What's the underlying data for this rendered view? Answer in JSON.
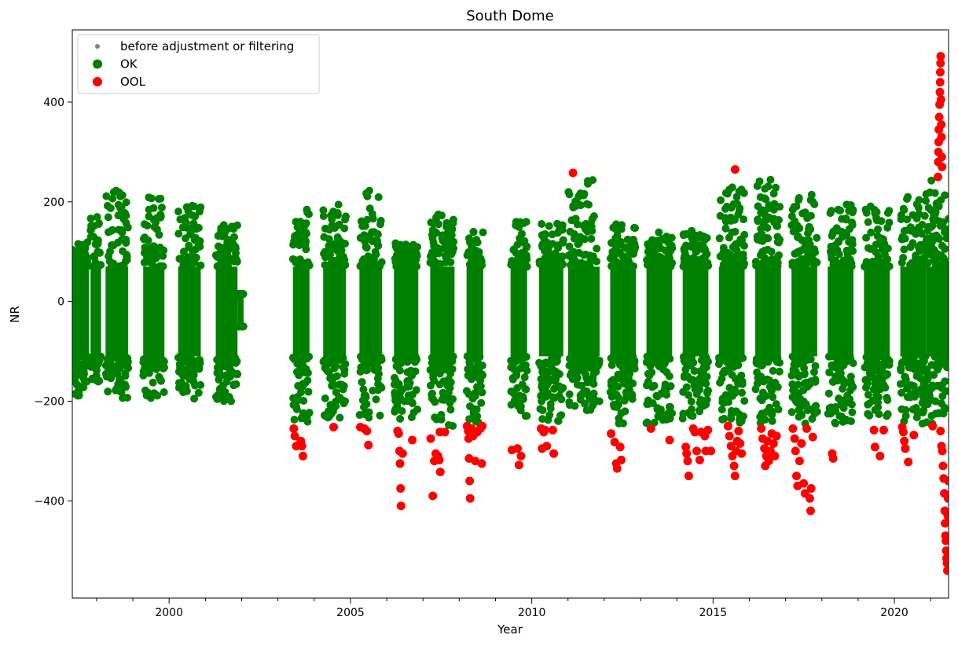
{
  "chart_data": {
    "type": "scatter",
    "title": "South Dome",
    "xlabel": "Year",
    "ylabel": "NR",
    "xlim": [
      "1997-05-01",
      "2021-06-30"
    ],
    "ylim": [
      -595,
      545
    ],
    "x_ticks": [
      {
        "value": "2000-01-01",
        "label": "2000"
      },
      {
        "value": "2005-01-01",
        "label": "2005"
      },
      {
        "value": "2010-01-01",
        "label": "2010"
      },
      {
        "value": "2015-01-01",
        "label": "2015"
      },
      {
        "value": "2020-01-01",
        "label": "2020"
      }
    ],
    "y_ticks": [
      {
        "value": -400,
        "label": "−400"
      },
      {
        "value": -200,
        "label": "−200"
      },
      {
        "value": 0,
        "label": "0"
      },
      {
        "value": 200,
        "label": "200"
      },
      {
        "value": 400,
        "label": "400"
      }
    ],
    "grid": false,
    "legend": {
      "position": "top-left",
      "entries": [
        {
          "label": "before adjustment or filtering",
          "color": "#808080",
          "marker": "small-dot"
        },
        {
          "label": "OK",
          "color": "#008000",
          "marker": "dot"
        },
        {
          "label": "OOL",
          "color": "#ff0000",
          "marker": "dot"
        }
      ]
    },
    "ok_range_note": "OK band roughly -250 to 250",
    "series": [
      {
        "name": "OK",
        "color": "#008000",
        "bands": [
          {
            "start": "1997-05-01",
            "end": "1997-10-15",
            "min": -195,
            "max": 120
          },
          {
            "start": "1997-11-01",
            "end": "1998-02-15",
            "min": -165,
            "max": 180
          },
          {
            "start": "1998-04-01",
            "end": "1998-11-15",
            "min": -195,
            "max": 225
          },
          {
            "start": "1999-04-15",
            "end": "1999-11-15",
            "min": -195,
            "max": 210
          },
          {
            "start": "2000-04-01",
            "end": "2000-11-15",
            "min": -195,
            "max": 195
          },
          {
            "start": "2001-04-15",
            "end": "2001-11-20",
            "min": -200,
            "max": 155
          },
          {
            "start": "2001-11-20",
            "end": "2002-01-20",
            "min": -50,
            "max": 15
          },
          {
            "start": "2003-06-01",
            "end": "2003-11-15",
            "min": -245,
            "max": 195
          },
          {
            "start": "2004-04-01",
            "end": "2004-11-15",
            "min": -245,
            "max": 195
          },
          {
            "start": "2005-04-01",
            "end": "2005-11-15",
            "min": -240,
            "max": 225
          },
          {
            "start": "2006-03-15",
            "end": "2006-11-15",
            "min": -240,
            "max": 120
          },
          {
            "start": "2007-03-15",
            "end": "2007-11-15",
            "min": -250,
            "max": 175
          },
          {
            "start": "2008-03-15",
            "end": "2008-08-30",
            "min": -250,
            "max": 145
          },
          {
            "start": "2009-06-01",
            "end": "2009-11-15",
            "min": -245,
            "max": 165
          },
          {
            "start": "2010-03-15",
            "end": "2010-11-15",
            "min": -245,
            "max": 160
          },
          {
            "start": "2011-01-01",
            "end": "2011-11-15",
            "min": -220,
            "max": 245
          },
          {
            "start": "2012-03-01",
            "end": "2012-11-15",
            "min": -245,
            "max": 155
          },
          {
            "start": "2013-03-01",
            "end": "2013-11-15",
            "min": -245,
            "max": 140
          },
          {
            "start": "2014-03-01",
            "end": "2014-11-15",
            "min": -245,
            "max": 145
          },
          {
            "start": "2015-03-01",
            "end": "2015-11-15",
            "min": -245,
            "max": 230
          },
          {
            "start": "2016-03-01",
            "end": "2016-11-15",
            "min": -245,
            "max": 245
          },
          {
            "start": "2017-03-01",
            "end": "2017-11-15",
            "min": -245,
            "max": 220
          },
          {
            "start": "2018-03-01",
            "end": "2018-11-15",
            "min": -245,
            "max": 195
          },
          {
            "start": "2019-03-01",
            "end": "2019-11-15",
            "min": -230,
            "max": 195
          },
          {
            "start": "2020-03-01",
            "end": "2020-11-15",
            "min": -245,
            "max": 210
          },
          {
            "start": "2020-11-15",
            "end": "2021-06-30",
            "min": -245,
            "max": 245
          }
        ]
      },
      {
        "name": "OOL",
        "color": "#ff0000",
        "points": [
          {
            "x": "2003-06-10",
            "y": -255
          },
          {
            "x": "2003-06-20",
            "y": -270
          },
          {
            "x": "2003-07-05",
            "y": -290
          },
          {
            "x": "2003-08-20",
            "y": -280
          },
          {
            "x": "2003-09-01",
            "y": -290
          },
          {
            "x": "2003-09-10",
            "y": -310
          },
          {
            "x": "2004-07-15",
            "y": -252
          },
          {
            "x": "2005-04-10",
            "y": -252
          },
          {
            "x": "2005-05-20",
            "y": -255
          },
          {
            "x": "2005-06-15",
            "y": -260
          },
          {
            "x": "2005-07-01",
            "y": -288
          },
          {
            "x": "2006-04-20",
            "y": -260
          },
          {
            "x": "2006-05-01",
            "y": -265
          },
          {
            "x": "2006-05-10",
            "y": -300
          },
          {
            "x": "2006-05-15",
            "y": -325
          },
          {
            "x": "2006-05-20",
            "y": -375
          },
          {
            "x": "2006-05-25",
            "y": -410
          },
          {
            "x": "2006-06-10",
            "y": -305
          },
          {
            "x": "2006-09-15",
            "y": -278
          },
          {
            "x": "2007-03-20",
            "y": -275
          },
          {
            "x": "2007-04-10",
            "y": -390
          },
          {
            "x": "2007-04-25",
            "y": -320
          },
          {
            "x": "2007-05-10",
            "y": -305
          },
          {
            "x": "2007-06-01",
            "y": -310
          },
          {
            "x": "2007-06-15",
            "y": -318
          },
          {
            "x": "2007-06-20",
            "y": -262
          },
          {
            "x": "2007-06-25",
            "y": -342
          },
          {
            "x": "2007-08-10",
            "y": -262
          },
          {
            "x": "2008-03-20",
            "y": -250
          },
          {
            "x": "2008-04-01",
            "y": -260
          },
          {
            "x": "2008-04-05",
            "y": -275
          },
          {
            "x": "2008-04-10",
            "y": -315
          },
          {
            "x": "2008-04-15",
            "y": -360
          },
          {
            "x": "2008-04-20",
            "y": -395
          },
          {
            "x": "2008-05-05",
            "y": -255
          },
          {
            "x": "2008-05-20",
            "y": -270
          },
          {
            "x": "2008-06-10",
            "y": -320
          },
          {
            "x": "2008-07-01",
            "y": -262
          },
          {
            "x": "2008-08-01",
            "y": -255
          },
          {
            "x": "2008-08-15",
            "y": -325
          },
          {
            "x": "2008-08-20",
            "y": -250
          },
          {
            "x": "2009-06-15",
            "y": -298
          },
          {
            "x": "2009-08-10",
            "y": -295
          },
          {
            "x": "2009-08-25",
            "y": -328
          },
          {
            "x": "2009-09-15",
            "y": -310
          },
          {
            "x": "2010-04-05",
            "y": -255
          },
          {
            "x": "2010-04-15",
            "y": -295
          },
          {
            "x": "2010-05-01",
            "y": -262
          },
          {
            "x": "2010-05-15",
            "y": -258
          },
          {
            "x": "2010-06-01",
            "y": -290
          },
          {
            "x": "2010-08-01",
            "y": -258
          },
          {
            "x": "2010-08-10",
            "y": -305
          },
          {
            "x": "2011-02-20",
            "y": 258
          },
          {
            "x": "2012-03-10",
            "y": -265
          },
          {
            "x": "2012-04-15",
            "y": -282
          },
          {
            "x": "2012-05-01",
            "y": -325
          },
          {
            "x": "2012-05-10",
            "y": -335
          },
          {
            "x": "2012-06-10",
            "y": -292
          },
          {
            "x": "2012-06-20",
            "y": -318
          },
          {
            "x": "2013-04-15",
            "y": -255
          },
          {
            "x": "2013-10-20",
            "y": -278
          },
          {
            "x": "2014-04-01",
            "y": -292
          },
          {
            "x": "2014-04-10",
            "y": -305
          },
          {
            "x": "2014-04-20",
            "y": -320
          },
          {
            "x": "2014-05-01",
            "y": -350
          },
          {
            "x": "2014-06-15",
            "y": -255
          },
          {
            "x": "2014-07-01",
            "y": -262
          },
          {
            "x": "2014-07-20",
            "y": -300
          },
          {
            "x": "2014-08-20",
            "y": -318
          },
          {
            "x": "2014-09-01",
            "y": -262
          },
          {
            "x": "2014-10-10",
            "y": -270
          },
          {
            "x": "2014-10-20",
            "y": -300
          },
          {
            "x": "2014-11-10",
            "y": -258
          },
          {
            "x": "2014-12-10",
            "y": -300
          },
          {
            "x": "2015-06-01",
            "y": -250
          },
          {
            "x": "2015-06-15",
            "y": -270
          },
          {
            "x": "2015-07-01",
            "y": -290
          },
          {
            "x": "2015-07-15",
            "y": -310
          },
          {
            "x": "2015-08-01",
            "y": -330
          },
          {
            "x": "2015-08-10",
            "y": -350
          },
          {
            "x": "2015-08-10",
            "y": 265
          },
          {
            "x": "2015-08-20",
            "y": -300
          },
          {
            "x": "2015-09-01",
            "y": -280
          },
          {
            "x": "2015-09-15",
            "y": -260
          },
          {
            "x": "2015-10-01",
            "y": -285
          },
          {
            "x": "2015-10-15",
            "y": -305
          },
          {
            "x": "2016-05-01",
            "y": -255
          },
          {
            "x": "2016-05-15",
            "y": -275
          },
          {
            "x": "2016-06-01",
            "y": -295
          },
          {
            "x": "2016-06-10",
            "y": -330
          },
          {
            "x": "2016-06-20",
            "y": -310
          },
          {
            "x": "2016-07-01",
            "y": -280
          },
          {
            "x": "2016-07-15",
            "y": -320
          },
          {
            "x": "2016-08-01",
            "y": -300
          },
          {
            "x": "2016-08-15",
            "y": -265
          },
          {
            "x": "2016-09-01",
            "y": -285
          },
          {
            "x": "2016-09-15",
            "y": -310
          },
          {
            "x": "2016-10-01",
            "y": -270
          },
          {
            "x": "2017-03-15",
            "y": -255
          },
          {
            "x": "2017-04-01",
            "y": -275
          },
          {
            "x": "2017-04-10",
            "y": -300
          },
          {
            "x": "2017-04-20",
            "y": -350
          },
          {
            "x": "2017-05-01",
            "y": -370
          },
          {
            "x": "2017-05-20",
            "y": -320
          },
          {
            "x": "2017-06-10",
            "y": -285
          },
          {
            "x": "2017-07-01",
            "y": -365
          },
          {
            "x": "2017-07-15",
            "y": -385
          },
          {
            "x": "2017-08-01",
            "y": -255
          },
          {
            "x": "2017-09-01",
            "y": -395
          },
          {
            "x": "2017-09-10",
            "y": -420
          },
          {
            "x": "2017-09-15",
            "y": -375
          },
          {
            "x": "2017-10-01",
            "y": -272
          },
          {
            "x": "2018-04-15",
            "y": -305
          },
          {
            "x": "2018-04-25",
            "y": -315
          },
          {
            "x": "2019-06-10",
            "y": -258
          },
          {
            "x": "2019-06-20",
            "y": -292
          },
          {
            "x": "2019-08-10",
            "y": -310
          },
          {
            "x": "2019-09-15",
            "y": -258
          },
          {
            "x": "2020-03-20",
            "y": -252
          },
          {
            "x": "2020-04-01",
            "y": -262
          },
          {
            "x": "2020-04-10",
            "y": -280
          },
          {
            "x": "2020-04-20",
            "y": -295
          },
          {
            "x": "2020-05-20",
            "y": -322
          },
          {
            "x": "2020-07-15",
            "y": -268
          },
          {
            "x": "2021-01-20",
            "y": -250
          },
          {
            "x": "2021-03-15",
            "y": 250
          },
          {
            "x": "2021-03-18",
            "y": 280
          },
          {
            "x": "2021-03-20",
            "y": 300
          },
          {
            "x": "2021-03-22",
            "y": 320
          },
          {
            "x": "2021-03-25",
            "y": 345
          },
          {
            "x": "2021-03-28",
            "y": 370
          },
          {
            "x": "2021-04-01",
            "y": 395
          },
          {
            "x": "2021-04-04",
            "y": 420
          },
          {
            "x": "2021-04-06",
            "y": 440
          },
          {
            "x": "2021-04-08",
            "y": 460
          },
          {
            "x": "2021-04-10",
            "y": 478
          },
          {
            "x": "2021-04-12",
            "y": 492
          },
          {
            "x": "2021-04-15",
            "y": 405
          },
          {
            "x": "2021-04-18",
            "y": 355
          },
          {
            "x": "2021-04-20",
            "y": 330
          },
          {
            "x": "2021-04-22",
            "y": 290
          },
          {
            "x": "2021-04-25",
            "y": 270
          },
          {
            "x": "2021-04-10",
            "y": -260
          },
          {
            "x": "2021-04-20",
            "y": -290
          },
          {
            "x": "2021-04-28",
            "y": -300
          },
          {
            "x": "2021-05-05",
            "y": -330
          },
          {
            "x": "2021-05-12",
            "y": -355
          },
          {
            "x": "2021-05-18",
            "y": -385
          },
          {
            "x": "2021-05-22",
            "y": -420
          },
          {
            "x": "2021-05-26",
            "y": -445
          },
          {
            "x": "2021-05-30",
            "y": -470
          },
          {
            "x": "2021-06-03",
            "y": -480
          },
          {
            "x": "2021-06-06",
            "y": -500
          },
          {
            "x": "2021-06-10",
            "y": -515
          },
          {
            "x": "2021-06-14",
            "y": -525
          },
          {
            "x": "2021-06-18",
            "y": -540
          },
          {
            "x": "2021-06-22",
            "y": -430
          },
          {
            "x": "2021-06-25",
            "y": -395
          },
          {
            "x": "2021-06-28",
            "y": -360
          }
        ]
      }
    ]
  }
}
